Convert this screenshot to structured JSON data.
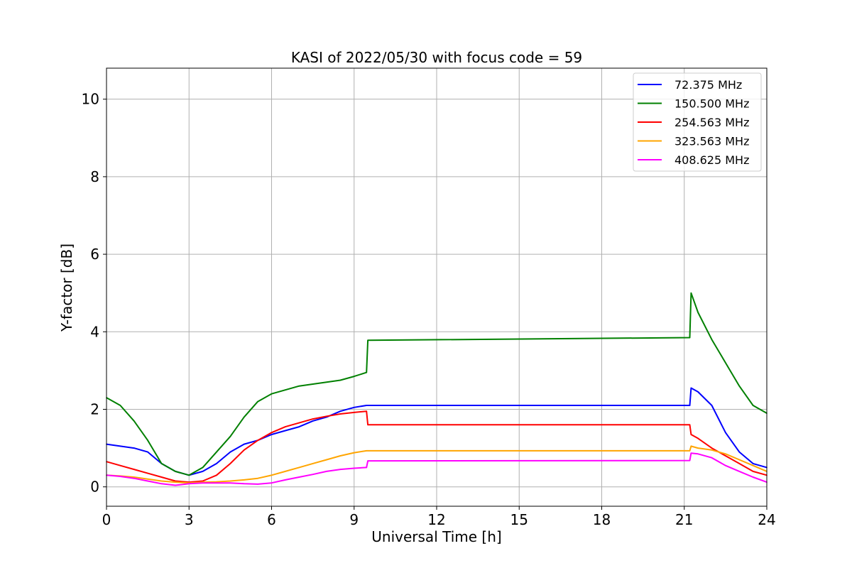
{
  "chart_data": {
    "type": "line",
    "title": "KASI of 2022/05/30 with focus code = 59",
    "xlabel": "Universal Time [h]",
    "ylabel": "Y-factor [dB]",
    "xlim": [
      0,
      24
    ],
    "ylim": [
      -0.5,
      10.8
    ],
    "xticks": [
      0,
      3,
      6,
      9,
      12,
      15,
      18,
      21,
      24
    ],
    "yticks": [
      0,
      2,
      4,
      6,
      8,
      10
    ],
    "grid": true,
    "legend_position": "top-right",
    "series": [
      {
        "name": "72.375 MHz",
        "color": "#0000ff",
        "x": [
          0,
          0.5,
          1,
          1.5,
          2,
          2.5,
          3,
          3.5,
          4,
          4.5,
          5,
          5.5,
          6,
          6.5,
          7,
          7.5,
          8,
          8.5,
          9,
          9.45,
          9.5,
          21.2,
          21.25,
          21.5,
          22,
          22.5,
          23,
          23.5,
          24
        ],
        "y": [
          1.1,
          1.05,
          1.0,
          0.9,
          0.6,
          0.4,
          0.3,
          0.4,
          0.6,
          0.9,
          1.1,
          1.2,
          1.35,
          1.45,
          1.55,
          1.7,
          1.8,
          1.95,
          2.05,
          2.1,
          2.1,
          2.1,
          2.55,
          2.45,
          2.1,
          1.4,
          0.9,
          0.6,
          0.5
        ]
      },
      {
        "name": "150.500 MHz",
        "color": "#008000",
        "x": [
          0,
          0.5,
          1,
          1.5,
          2,
          2.5,
          3,
          3.5,
          4,
          4.5,
          5,
          5.5,
          6,
          6.5,
          7,
          7.5,
          8,
          8.5,
          9,
          9.45,
          9.5,
          21.2,
          21.25,
          21.5,
          22,
          22.5,
          23,
          23.5,
          24
        ],
        "y": [
          2.3,
          2.1,
          1.7,
          1.2,
          0.6,
          0.4,
          0.3,
          0.5,
          0.9,
          1.3,
          1.8,
          2.2,
          2.4,
          2.5,
          2.6,
          2.65,
          2.7,
          2.75,
          2.85,
          2.95,
          3.78,
          3.85,
          5.0,
          4.5,
          3.8,
          3.2,
          2.6,
          2.1,
          1.9
        ]
      },
      {
        "name": "254.563 MHz",
        "color": "#ff0000",
        "x": [
          0,
          0.5,
          1,
          1.5,
          2,
          2.5,
          3,
          3.5,
          4,
          4.5,
          5,
          5.5,
          6,
          6.5,
          7,
          7.5,
          8,
          8.5,
          9,
          9.45,
          9.5,
          21.2,
          21.25,
          21.5,
          22,
          22.5,
          23,
          23.5,
          24
        ],
        "y": [
          0.65,
          0.55,
          0.45,
          0.35,
          0.25,
          0.15,
          0.12,
          0.15,
          0.3,
          0.6,
          0.95,
          1.2,
          1.4,
          1.55,
          1.65,
          1.75,
          1.82,
          1.88,
          1.92,
          1.95,
          1.6,
          1.6,
          1.35,
          1.25,
          1.0,
          0.8,
          0.6,
          0.4,
          0.3
        ]
      },
      {
        "name": "323.563 MHz",
        "color": "#ffa500",
        "x": [
          0,
          0.5,
          1,
          1.5,
          2,
          2.5,
          3,
          3.5,
          4,
          4.5,
          5,
          5.5,
          6,
          6.5,
          7,
          7.5,
          8,
          8.5,
          9,
          9.45,
          9.5,
          21.2,
          21.25,
          21.5,
          22,
          22.5,
          23,
          23.5,
          24
        ],
        "y": [
          0.3,
          0.28,
          0.25,
          0.2,
          0.15,
          0.12,
          0.1,
          0.12,
          0.13,
          0.15,
          0.18,
          0.22,
          0.3,
          0.4,
          0.5,
          0.6,
          0.7,
          0.8,
          0.88,
          0.93,
          0.93,
          0.93,
          1.05,
          1.0,
          0.95,
          0.85,
          0.7,
          0.55,
          0.4
        ]
      },
      {
        "name": "408.625 MHz",
        "color": "#ff00ff",
        "x": [
          0,
          0.5,
          1,
          1.5,
          2,
          2.5,
          3,
          3.5,
          4,
          4.5,
          5,
          5.5,
          6,
          6.5,
          7,
          7.5,
          8,
          8.5,
          9,
          9.45,
          9.5,
          21.2,
          21.25,
          21.5,
          22,
          22.5,
          23,
          23.5,
          24
        ],
        "y": [
          0.3,
          0.27,
          0.22,
          0.15,
          0.08,
          0.04,
          0.08,
          0.1,
          0.1,
          0.1,
          0.08,
          0.07,
          0.1,
          0.18,
          0.25,
          0.32,
          0.4,
          0.45,
          0.48,
          0.5,
          0.67,
          0.68,
          0.87,
          0.85,
          0.75,
          0.55,
          0.4,
          0.25,
          0.12
        ]
      }
    ]
  }
}
